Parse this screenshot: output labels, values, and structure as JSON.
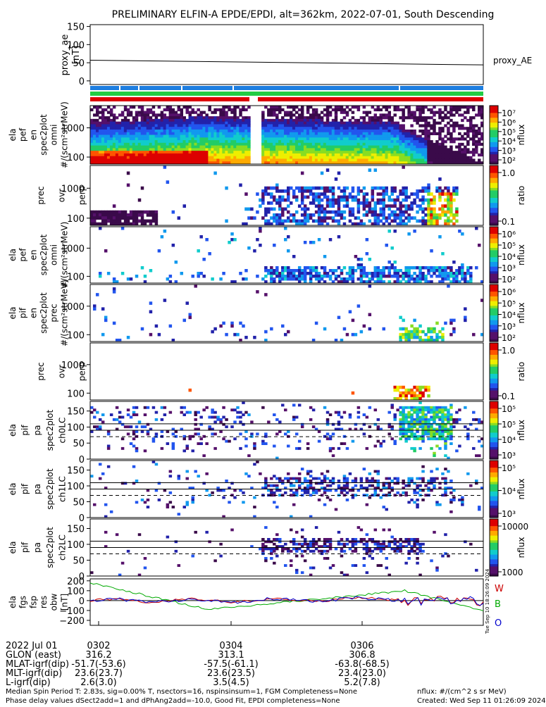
{
  "title": "PRELIMINARY ELFIN-A EPDE/EPDI, alt=362km, 2022-07-01, South Descending",
  "panels": [
    {
      "id": "ae",
      "ylabel": [
        "proxy_ae",
        "[nT]"
      ],
      "yticks": [
        "150",
        "100",
        "50",
        "0"
      ],
      "right_label": "proxy_AE"
    },
    {
      "id": "spec_en_perp",
      "ylabel": [
        "ela",
        "pef",
        "en",
        "spec2plot",
        "omni",
        "#/(scm²strMeV)"
      ],
      "yticks": [
        "1000",
        "100"
      ],
      "cbar_ticks": [
        "10⁷",
        "10⁶",
        "10⁵",
        "10⁴",
        "10³",
        "10²"
      ],
      "cbar_label": "nflux"
    },
    {
      "id": "ratio_e",
      "ylabel": [
        "prec",
        "ovr",
        "perp"
      ],
      "yticks": [
        "1000",
        "100"
      ],
      "cbar_ticks": [
        "1.0",
        "0.1"
      ],
      "cbar_label": "ratio"
    },
    {
      "id": "spec_en_omni",
      "ylabel": [
        "ela",
        "pef",
        "en",
        "spec2plot",
        "omni",
        "#/(scm²strMeV)"
      ],
      "yticks": [
        "1000",
        "100"
      ],
      "cbar_ticks": [
        "10⁶",
        "10⁵",
        "10⁴",
        "10³",
        "10²"
      ],
      "cbar_label": "nflux"
    },
    {
      "id": "spec_en_prec",
      "ylabel": [
        "ela",
        "pif",
        "en",
        "spec2plot",
        "prec",
        "#/(scm²strMeV)"
      ],
      "yticks": [
        "1000",
        "100"
      ],
      "cbar_ticks": [
        "10⁶",
        "10⁵",
        "10⁴",
        "10³",
        "10²"
      ],
      "cbar_label": "nflux"
    },
    {
      "id": "ratio_i",
      "ylabel": [
        "prec",
        "ovr",
        "perp"
      ],
      "yticks": [
        "1000",
        "100"
      ],
      "cbar_ticks": [
        "1.0",
        "0.1"
      ],
      "cbar_label": "ratio"
    },
    {
      "id": "pa_ch0",
      "ylabel": [
        "ela",
        "pif",
        "pa",
        "spec2plot",
        "ch0LC"
      ],
      "yticks": [
        "150",
        "100",
        "50",
        "0"
      ],
      "cbar_ticks": [
        "10⁵",
        "10⁵",
        "10⁴",
        "10³"
      ],
      "cbar_label": "nflux"
    },
    {
      "id": "pa_ch1",
      "ylabel": [
        "ela",
        "pif",
        "pa",
        "spec2plot",
        "ch1LC"
      ],
      "yticks": [
        "150",
        "100",
        "50",
        "0"
      ],
      "cbar_ticks": [
        "10⁵",
        "10⁴",
        "10³"
      ],
      "cbar_label": "nflux"
    },
    {
      "id": "pa_ch2",
      "ylabel": [
        "ela",
        "pif",
        "pa",
        "spec2plot",
        "ch2LC"
      ],
      "yticks": [
        "150",
        "100",
        "50",
        "0"
      ],
      "cbar_ticks": [
        "10000",
        "1000"
      ],
      "cbar_label": "nflux"
    },
    {
      "id": "fgs",
      "ylabel": [
        "ela",
        "fgs",
        "fsp",
        "res",
        "obw",
        "[nT]"
      ],
      "yticks": [
        "200",
        "100",
        "0",
        "−100",
        "−200"
      ],
      "legend": [
        "W",
        "B",
        "O"
      ]
    }
  ],
  "xaxis": {
    "date_label": "2022 Jul 01",
    "ticks": [
      "0302",
      "0304",
      "0306"
    ],
    "rows": [
      {
        "label": "GLON (east)",
        "values": [
          "316.2",
          "313.1",
          "306.8"
        ]
      },
      {
        "label": "MLAT-igrf(dip)",
        "values": [
          "-51.7(-53.6)",
          "-57.5(-61.1)",
          "-63.8(-68.5)"
        ]
      },
      {
        "label": "MLT-igrf(dip)",
        "values": [
          "23.6(23.7)",
          "23.6(23.5)",
          "23.4(23.0)"
        ]
      },
      {
        "label": "L-igrf(dip)",
        "values": [
          "2.6(3.0)",
          "3.5(4.5)",
          "5.2(7.8)"
        ]
      }
    ]
  },
  "footer": {
    "line1": "Median Spin Period T: 2.83s, sig=0.00% T, nsectors=16, nspinsinsum=1, FGM Completeness=None",
    "line2": "Phase delay values dSect2add=1 and dPhAng2add=-10.0, Good Fit, EPDI completeness=None",
    "units": "nflux: #/(cm^2 s sr MeV)",
    "created": "Created: Wed Sep 11 01:26:09 2024",
    "side_stamp": "Tue Sep 10 18:26:09 2024"
  },
  "chart_data": {
    "type": "line",
    "title": "PRELIMINARY ELFIN-A EPDE/EPDI, alt=362km, 2022-07-01, South Descending",
    "proxy_ae": {
      "x_minutes": [
        0,
        7
      ],
      "y": [
        57,
        44
      ],
      "ylim": [
        -10,
        155
      ],
      "ylabel": "proxy_ae [nT]"
    },
    "fgs_res": {
      "ylim": [
        -250,
        220
      ],
      "series": [
        {
          "name": "W",
          "color": "#cc0000"
        },
        {
          "name": "B",
          "color": "#00aa00"
        },
        {
          "name": "O",
          "color": "#0000cc"
        }
      ]
    },
    "pa_ylim": [
      0,
      180
    ],
    "energy_ylim": [
      60,
      6000
    ]
  }
}
